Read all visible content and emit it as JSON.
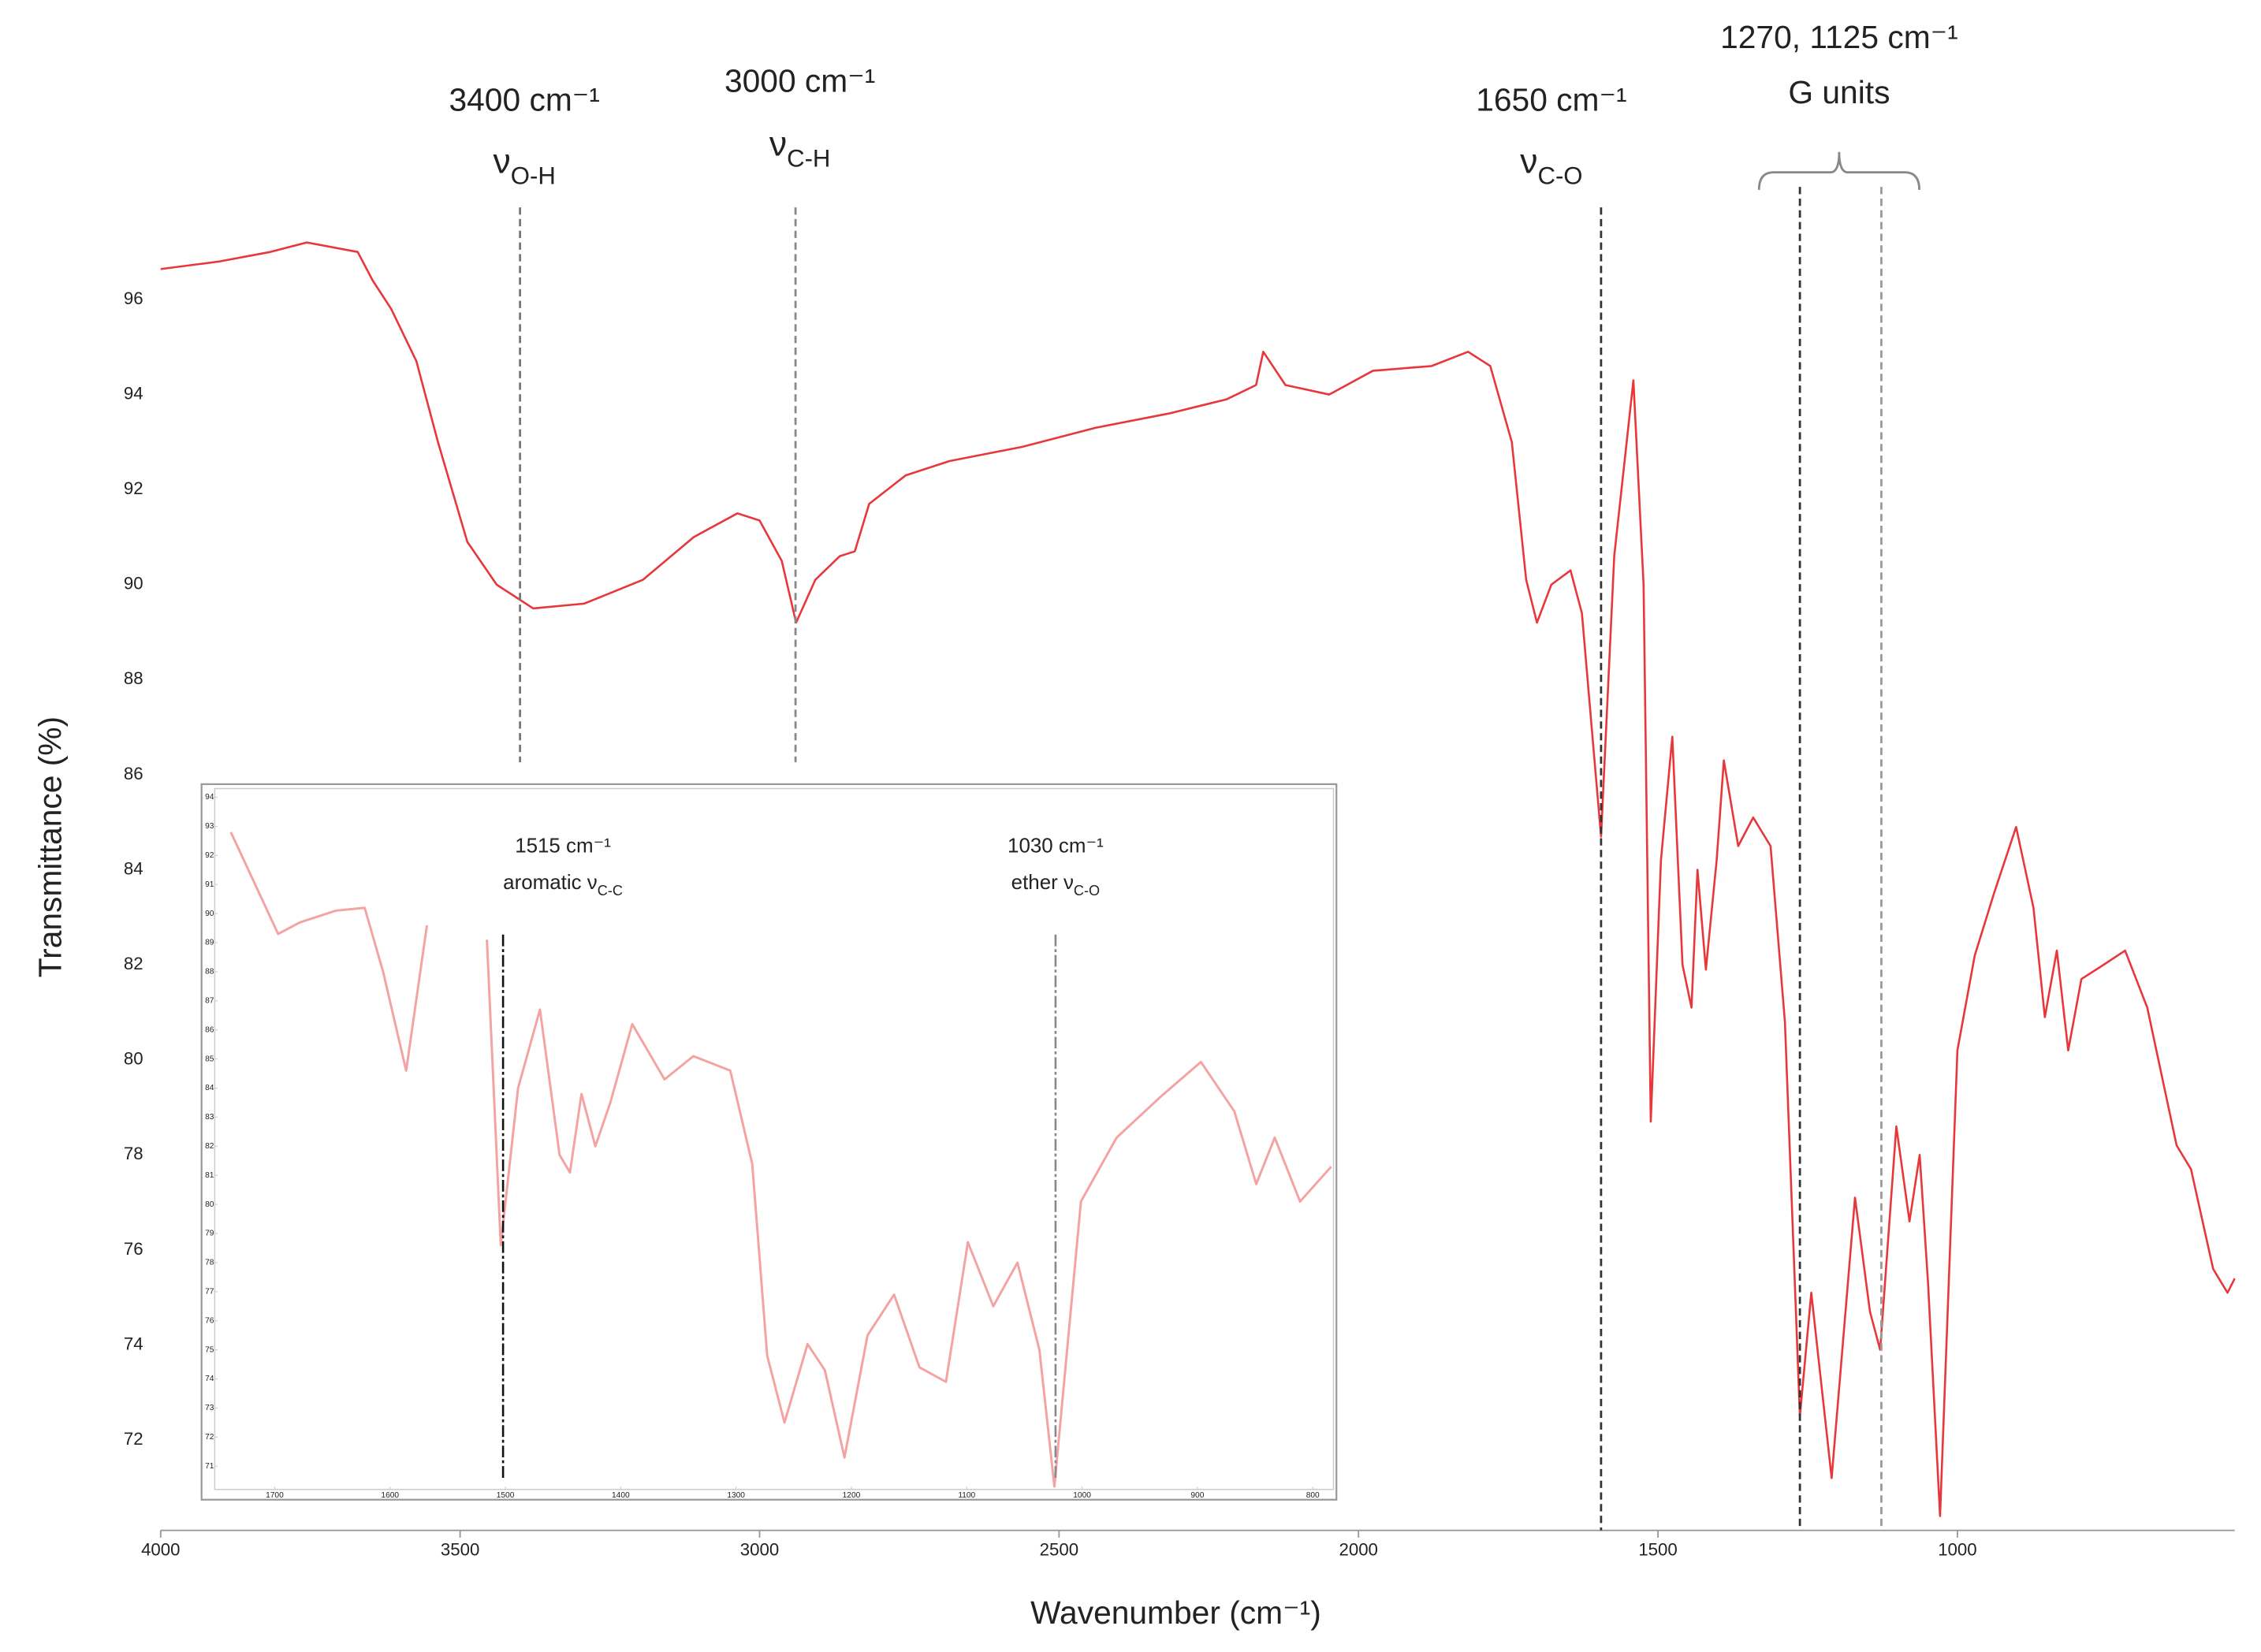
{
  "chart_data": {
    "type": "line",
    "xlabel": "Wavenumber (cm⁻¹)",
    "ylabel": "Transmittance (%)",
    "color": "#e8373b",
    "x": [
      4000,
      3902,
      3817,
      3756,
      3671,
      3646,
      3615,
      3573,
      3537,
      3488,
      3439,
      3378,
      3293,
      3195,
      3110,
      3037,
      3000,
      2963,
      2939,
      2907,
      2866,
      2841,
      2817,
      2756,
      2683,
      2561,
      2439,
      2317,
      2220,
      2171,
      2159,
      2122,
      2049,
      1976,
      1878,
      1817,
      1780,
      1744,
      1720,
      1702,
      1678,
      1646,
      1627,
      1610,
      1595,
      1573,
      1541,
      1524,
      1512,
      1495,
      1476,
      1459,
      1444,
      1434,
      1420,
      1402,
      1390,
      1366,
      1341,
      1312,
      1288,
      1263,
      1244,
      1210,
      1171,
      1146,
      1129,
      1102,
      1080,
      1063,
      1049,
      1029,
      1000,
      971,
      939,
      902,
      873,
      854,
      834,
      815,
      793,
      756,
      720,
      683,
      634,
      610,
      573,
      549,
      537
    ],
    "values": [
      96.64,
      96.8,
      97.0,
      97.2,
      97.0,
      96.4,
      95.8,
      94.7,
      93.0,
      90.9,
      90.0,
      89.5,
      89.6,
      90.1,
      91.0,
      91.5,
      91.35,
      90.5,
      89.2,
      90.1,
      90.6,
      90.7,
      91.7,
      92.3,
      92.6,
      92.9,
      93.3,
      93.6,
      93.9,
      94.2,
      94.9,
      94.2,
      94.0,
      94.5,
      94.6,
      94.9,
      94.6,
      93.0,
      90.1,
      89.2,
      90.0,
      90.3,
      89.4,
      86.9,
      84.7,
      90.6,
      94.3,
      90.0,
      78.7,
      84.2,
      86.8,
      82.0,
      81.1,
      84.0,
      81.9,
      84.2,
      86.3,
      84.5,
      85.1,
      84.5,
      80.8,
      72.5,
      75.1,
      71.2,
      77.1,
      74.7,
      73.9,
      78.6,
      76.6,
      78.0,
      75.3,
      70.4,
      80.2,
      82.2,
      83.5,
      84.9,
      83.2,
      80.9,
      82.3,
      80.2,
      81.7,
      82.0,
      82.3,
      81.1,
      78.2,
      77.7,
      75.6,
      75.1,
      75.4
    ],
    "xlim": [
      4000,
      537
    ],
    "ylim": [
      70.1,
      98
    ],
    "xticks": [
      4000,
      3500,
      3000,
      2500,
      2000,
      1500,
      1000
    ],
    "yticks": [
      72,
      74,
      76,
      78,
      80,
      82,
      84,
      86,
      88,
      90,
      92,
      94,
      96
    ],
    "grid": false,
    "annotations": [
      {
        "x": 3400,
        "label": "3400 cm⁻¹",
        "mode": "ν",
        "mode_sub": "O-H",
        "color": "#777777"
      },
      {
        "x": 2940,
        "label": "3000 cm⁻¹",
        "mode": "ν",
        "mode_sub": "C-H",
        "color": "#888888"
      },
      {
        "x": 1595,
        "label": "1650 cm⁻¹",
        "mode": "ν",
        "mode_sub": "C-O",
        "color": "#333333"
      }
    ],
    "bracket_annotation": {
      "x": [
        1263,
        1127
      ],
      "colors": [
        "#333333",
        "#999999"
      ],
      "label": "1270, 1125 cm⁻¹",
      "sublabel": "G units"
    },
    "inset": {
      "type": "line",
      "color": "#f4a3a3",
      "x": [
        1738,
        1697,
        1678,
        1647,
        1622,
        1606,
        1586,
        1568,
        1540,
        1516,
        1504,
        1489,
        1470,
        1453,
        1444,
        1434,
        1422,
        1409,
        1390,
        1362,
        1337,
        1305,
        1286,
        1273,
        1258,
        1238,
        1223,
        1206,
        1186,
        1163,
        1141,
        1118,
        1099,
        1077,
        1056,
        1037,
        1024,
        1001,
        970,
        932,
        897,
        868,
        849,
        833,
        811,
        784
      ],
      "values": [
        92.8,
        89.3,
        89.7,
        90.1,
        90.2,
        88.0,
        84.6,
        89.6,
        null,
        89.1,
        78.6,
        84.0,
        86.7,
        81.7,
        81.1,
        83.8,
        82.0,
        83.5,
        86.2,
        84.3,
        85.1,
        84.6,
        81.4,
        74.8,
        72.5,
        75.2,
        74.3,
        71.3,
        75.5,
        76.9,
        74.4,
        73.9,
        78.7,
        76.5,
        78.0,
        75.0,
        70.3,
        80.1,
        82.3,
        83.7,
        84.9,
        83.2,
        80.7,
        82.3,
        80.1,
        81.3
      ],
      "xlim": [
        1752,
        782
      ],
      "ylim": [
        70.2,
        94.3
      ],
      "xticks": [
        1700,
        1600,
        1500,
        1400,
        1300,
        1200,
        1100,
        1000,
        900,
        800
      ],
      "yticks": [
        71,
        72,
        73,
        74,
        75,
        76,
        77,
        78,
        79,
        80,
        81,
        82,
        83,
        84,
        85,
        86,
        87,
        88,
        89,
        90,
        91,
        92,
        93,
        94
      ],
      "annotations": [
        {
          "x": 1502,
          "label": "1515 cm⁻¹",
          "mode": "aromatic ν",
          "mode_sub": "C-C",
          "color": "#111111"
        },
        {
          "x": 1023,
          "label": "1030 cm⁻¹",
          "mode": "ether ν",
          "mode_sub": "C-O",
          "color": "#888888"
        }
      ]
    }
  }
}
